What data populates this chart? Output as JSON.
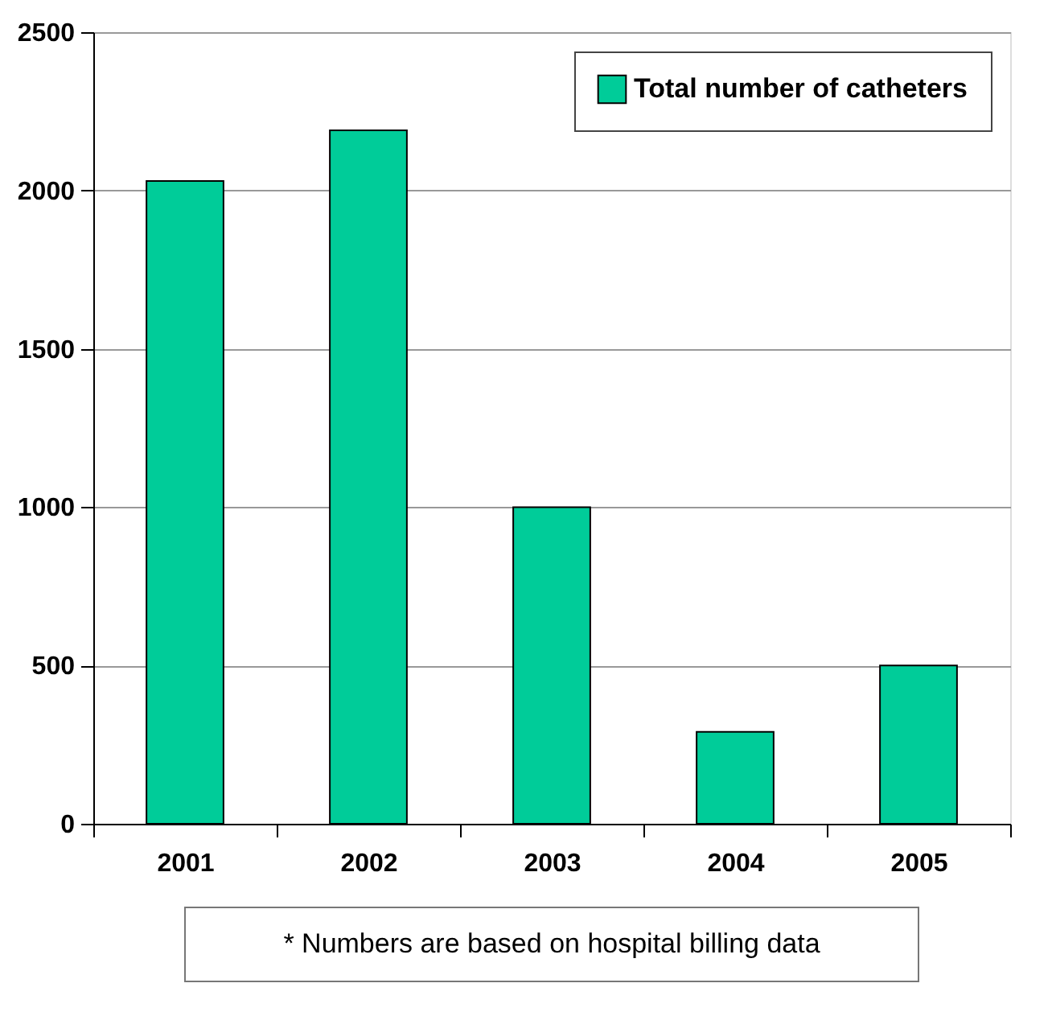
{
  "chart_data": {
    "type": "bar",
    "categories": [
      "2001",
      "2002",
      "2003",
      "2004",
      "2005"
    ],
    "series": [
      {
        "name": "Total number of catheters",
        "color": "#00cc99",
        "values": [
          2030,
          2190,
          1000,
          290,
          500
        ]
      }
    ],
    "ylim": [
      0,
      2500
    ],
    "yticks": [
      0,
      500,
      1000,
      1500,
      2000,
      2500
    ],
    "grid": "y",
    "legend": "top right",
    "annotations": [
      "* Numbers are based on hospital billing data"
    ]
  }
}
